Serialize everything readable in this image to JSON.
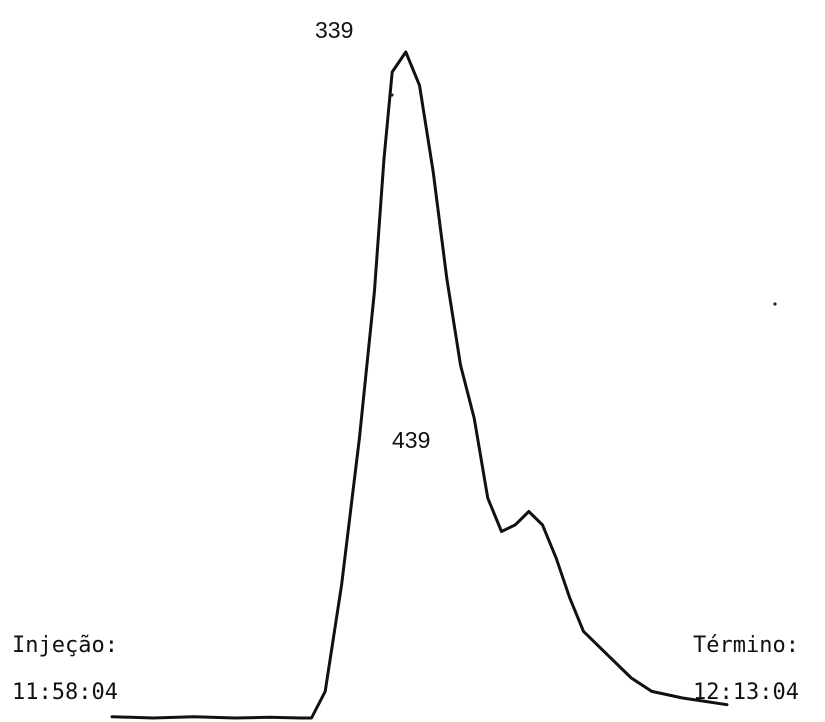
{
  "chart_data": {
    "type": "line",
    "title": "",
    "xlabel": "",
    "ylabel": "",
    "colors": {
      "trace": "#111111",
      "background": "#ffffff"
    },
    "grid": false,
    "x_range": [
      0,
      900
    ],
    "y_range": [
      0,
      1
    ],
    "series": [
      {
        "x": [
          0,
          60,
          120,
          180,
          230,
          276,
          292,
          312,
          336,
          362,
          384,
          398,
          410,
          430,
          450,
          470,
          490,
          510,
          530,
          550,
          570,
          590,
          610,
          630,
          650,
          670,
          690,
          720,
          760,
          790,
          835,
          900
        ],
        "y": [
          0.002,
          0.0,
          0.002,
          0.0,
          0.001,
          0.0,
          0.0,
          0.04,
          0.2,
          0.42,
          0.64,
          0.84,
          0.97,
          1.0,
          0.95,
          0.82,
          0.66,
          0.53,
          0.45,
          0.33,
          0.28,
          0.29,
          0.31,
          0.29,
          0.24,
          0.18,
          0.13,
          0.1,
          0.06,
          0.04,
          0.03,
          0.02
        ]
      }
    ],
    "annotations": {
      "peak_main": "339",
      "peak_shoulder": "439",
      "injection_label": "Injeção:",
      "injection_time": "11:58:04",
      "end_label": "Término:",
      "end_time": "12:13:04"
    }
  }
}
